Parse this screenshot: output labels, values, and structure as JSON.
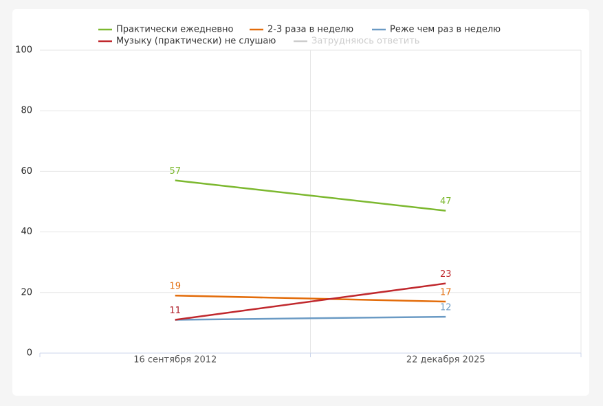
{
  "chart_data": {
    "type": "line",
    "categories": [
      "16 сентября 2012",
      "22 декабря 2025"
    ],
    "series": [
      {
        "name": "Практически ежедневно",
        "color": "#7cb82f",
        "values": [
          57,
          47
        ]
      },
      {
        "name": "2-3 раза в неделю",
        "color": "#e36c0a",
        "values": [
          19,
          17
        ]
      },
      {
        "name": "Реже чем раз в неделю",
        "color": "#6a9ac4",
        "values": [
          11,
          12
        ]
      },
      {
        "name": "Музыку (практически) не слушаю",
        "color": "#c0282d",
        "values": [
          11,
          23
        ]
      },
      {
        "name": "Затрудняюсь ответить",
        "color": "#cccccc",
        "values": [
          null,
          null
        ],
        "hidden": true
      }
    ],
    "ylim": [
      0,
      100
    ],
    "yticks": [
      0,
      20,
      40,
      60,
      80,
      100
    ],
    "grid": true,
    "legend": "top"
  }
}
